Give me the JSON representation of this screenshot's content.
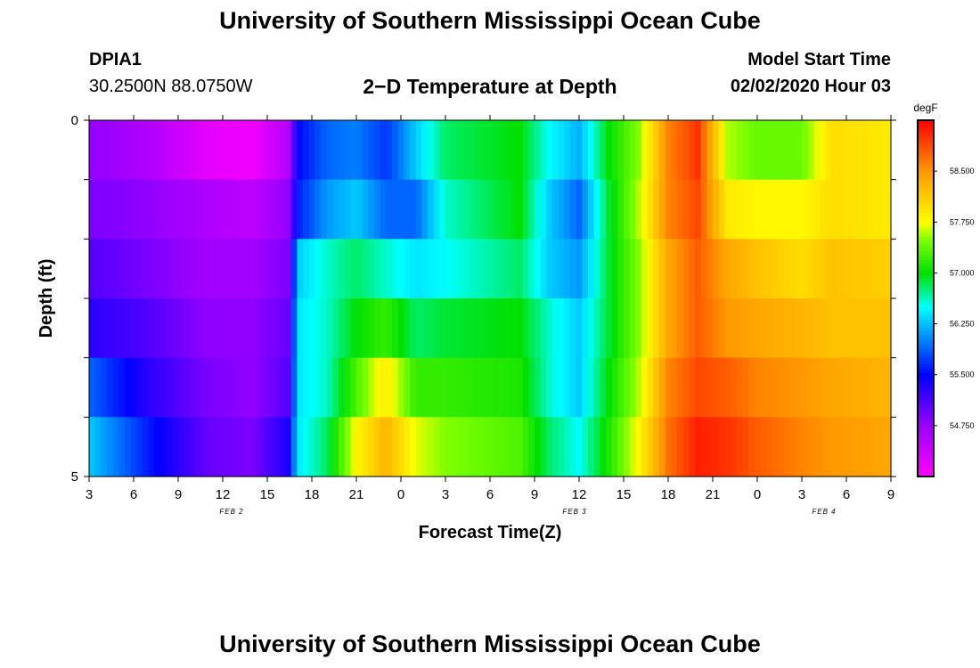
{
  "page": {
    "title_top": "University of Southern Mississippi Ocean Cube",
    "title_bottom": "University of Southern Mississippi Ocean Cube"
  },
  "header": {
    "station_id": "DPIA1",
    "location": "30.2500N 88.0750W",
    "plot_title": "2−D Temperature at Depth",
    "model_start_label": "Model Start Time",
    "model_start_value": "02/02/2020 Hour 03"
  },
  "colors": {
    "palette_stops": [
      {
        "v": 54.0,
        "c": "#ff00ff"
      },
      {
        "v": 54.75,
        "c": "#9b00ff"
      },
      {
        "v": 55.5,
        "c": "#0000ff"
      },
      {
        "v": 56.25,
        "c": "#00bfff"
      },
      {
        "v": 56.5,
        "c": "#00ffff"
      },
      {
        "v": 57.0,
        "c": "#00e000"
      },
      {
        "v": 57.5,
        "c": "#80ff00"
      },
      {
        "v": 57.75,
        "c": "#ffff00"
      },
      {
        "v": 58.5,
        "c": "#ff9900"
      },
      {
        "v": 59.25,
        "c": "#ff0000"
      }
    ]
  },
  "chart_data": {
    "type": "heatmap",
    "title": "2−D Temperature at Depth",
    "xlabel": "Forecast Time(Z)",
    "ylabel": "Depth (ft)",
    "x_tick_labels": [
      "3",
      "6",
      "9",
      "12",
      "15",
      "18",
      "21",
      "0",
      "3",
      "6",
      "9",
      "12",
      "15",
      "18",
      "21",
      "0",
      "3",
      "6",
      "9"
    ],
    "date_labels": [
      {
        "text": "FEB 2",
        "tick_index": 3.2
      },
      {
        "text": "FEB 3",
        "tick_index": 10.9
      },
      {
        "text": "FEB 4",
        "tick_index": 16.5
      }
    ],
    "x_range_hours": [
      3,
      57
    ],
    "y_tick_labels": [
      {
        "value": 0,
        "text": "0"
      },
      {
        "value": 5,
        "text": "5"
      }
    ],
    "ylim": [
      0,
      5
    ],
    "depth_bins": [
      0,
      1,
      2,
      3,
      4,
      5
    ],
    "colorbar": {
      "unit": "degF",
      "vmin": 54.0,
      "vmax": 59.25,
      "tick_labels": [
        "54.750",
        "55.500",
        "56.250",
        "57.000",
        "57.750",
        "58.500"
      ],
      "tick_values": [
        54.75,
        55.5,
        56.25,
        57.0,
        57.75,
        58.5
      ]
    },
    "profile_keys": [
      {
        "t": 3,
        "d": [
          54.8,
          54.9,
          55.1,
          55.3,
          55.9,
          56.3
        ]
      },
      {
        "t": 7,
        "d": [
          54.6,
          54.8,
          54.9,
          55.1,
          55.3,
          55.6
        ]
      },
      {
        "t": 11,
        "d": [
          54.2,
          54.6,
          54.7,
          54.8,
          54.9,
          55.0
        ]
      },
      {
        "t": 14,
        "d": [
          54.1,
          54.5,
          54.7,
          54.8,
          54.8,
          54.9
        ]
      },
      {
        "t": 16.5,
        "d": [
          54.6,
          54.8,
          54.9,
          55.0,
          55.1,
          55.4
        ]
      },
      {
        "t": 17,
        "d": [
          55.5,
          55.6,
          56.3,
          56.4,
          56.4,
          56.4
        ]
      },
      {
        "t": 19,
        "d": [
          55.9,
          56.1,
          56.6,
          56.6,
          56.6,
          56.8
        ]
      },
      {
        "t": 21,
        "d": [
          56.0,
          56.3,
          56.8,
          57.0,
          57.3,
          57.8
        ]
      },
      {
        "t": 23,
        "d": [
          55.7,
          55.9,
          56.6,
          57.2,
          57.9,
          58.3
        ]
      },
      {
        "t": 25,
        "d": [
          56.3,
          55.9,
          56.4,
          56.8,
          57.2,
          57.7
        ]
      },
      {
        "t": 27,
        "d": [
          56.8,
          56.6,
          56.5,
          56.9,
          57.2,
          57.5
        ]
      },
      {
        "t": 32,
        "d": [
          57.0,
          57.0,
          56.8,
          57.0,
          57.1,
          57.3
        ]
      },
      {
        "t": 34,
        "d": [
          56.5,
          56.3,
          56.3,
          56.6,
          56.6,
          56.8
        ]
      },
      {
        "t": 36,
        "d": [
          56.2,
          55.9,
          56.1,
          56.3,
          56.3,
          56.5
        ]
      },
      {
        "t": 38,
        "d": [
          57.0,
          56.9,
          56.9,
          56.9,
          57.0,
          57.1
        ]
      },
      {
        "t": 40,
        "d": [
          57.5,
          57.6,
          57.5,
          57.5,
          57.6,
          57.8
        ]
      },
      {
        "t": 42,
        "d": [
          58.6,
          58.6,
          58.4,
          58.4,
          58.6,
          58.7
        ]
      },
      {
        "t": 44,
        "d": [
          59.0,
          58.9,
          58.8,
          58.8,
          58.9,
          59.1
        ]
      },
      {
        "t": 46,
        "d": [
          57.6,
          57.9,
          58.4,
          58.5,
          58.8,
          59.0
        ]
      },
      {
        "t": 48,
        "d": [
          57.4,
          57.8,
          58.2,
          58.4,
          58.6,
          58.8
        ]
      },
      {
        "t": 51,
        "d": [
          57.4,
          57.8,
          58.0,
          58.3,
          58.5,
          58.6
        ]
      },
      {
        "t": 53,
        "d": [
          58.0,
          58.0,
          58.2,
          58.2,
          58.4,
          58.5
        ]
      },
      {
        "t": 57,
        "d": [
          57.9,
          57.9,
          58.1,
          58.2,
          58.3,
          58.4
        ]
      }
    ]
  }
}
